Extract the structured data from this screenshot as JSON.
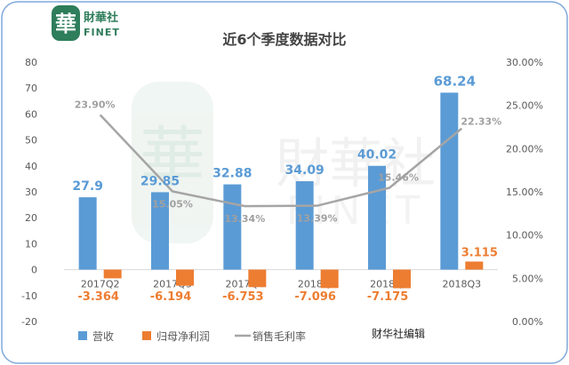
{
  "logo": {
    "glyph": "華",
    "cn": "財華社",
    "en": "FINET"
  },
  "watermark": {
    "glyph": "華",
    "cn": "財華社",
    "en": "FINET"
  },
  "credit": "财华社编辑",
  "chart_data": {
    "type": "bar+line",
    "title": "近6个季度数据对比",
    "categories": [
      "2017Q2",
      "2017Q3",
      "2017Q4",
      "2018Q1",
      "2018Q2",
      "2018Q3"
    ],
    "series": [
      {
        "name": "营收",
        "type": "bar",
        "axis": "left",
        "color": "#5B9BD5",
        "values": [
          27.9,
          29.85,
          32.88,
          34.09,
          40.02,
          68.24
        ],
        "labels": [
          "27.9",
          "29.85",
          "32.88",
          "34.09",
          "40.02",
          "68.24"
        ]
      },
      {
        "name": "归母净利润",
        "type": "bar",
        "axis": "left",
        "color": "#ED7D31",
        "values": [
          -3.364,
          -6.194,
          -6.753,
          -7.096,
          -7.175,
          3.115
        ],
        "labels": [
          "-3.364",
          "-6.194",
          "-6.753",
          "-7.096",
          "-7.175",
          "3.115"
        ]
      },
      {
        "name": "销售毛利率",
        "type": "line",
        "axis": "right",
        "color": "#A5A5A5",
        "values": [
          23.9,
          15.05,
          13.34,
          13.39,
          15.46,
          22.33
        ],
        "labels": [
          "23.90%",
          "15.05%",
          "13.34%",
          "13.39%",
          "15.46%",
          "22.33%"
        ]
      }
    ],
    "y_left": {
      "min": -20,
      "max": 80,
      "ticks": [
        "-20",
        "-10",
        "0",
        "10",
        "20",
        "30",
        "40",
        "50",
        "60",
        "70",
        "80"
      ]
    },
    "y_right": {
      "min": 0,
      "max": 30,
      "ticks": [
        "0.00%",
        "5.00%",
        "10.00%",
        "15.00%",
        "20.00%",
        "25.00%",
        "30.00%"
      ]
    },
    "grid": false,
    "legend_position": "bottom-left"
  }
}
